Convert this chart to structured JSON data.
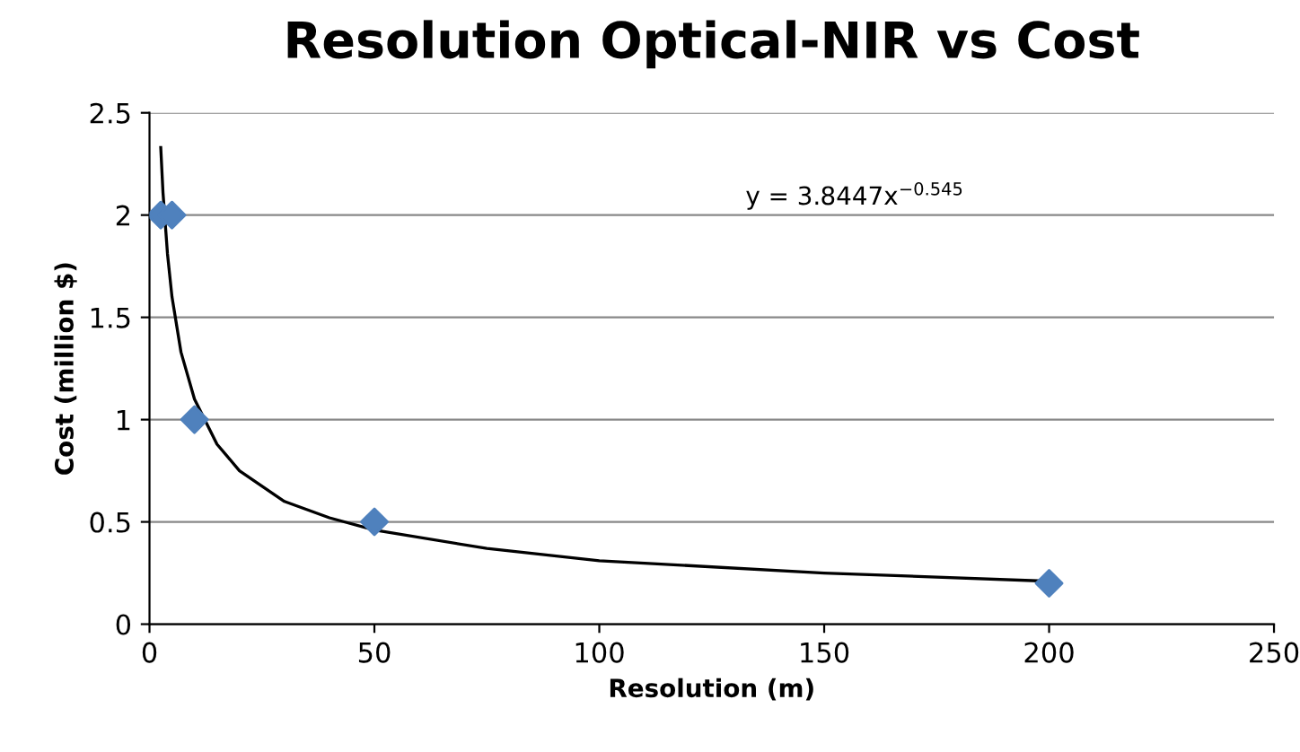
{
  "chart_data": {
    "type": "scatter",
    "title": "Resolution Optical-NIR vs Cost",
    "xlabel": "Resolution (m)",
    "ylabel": "Cost (million $)",
    "xlim": [
      0,
      250
    ],
    "xticks": [
      0,
      50,
      100,
      150,
      200,
      250
    ],
    "ylim": [
      0,
      2.5
    ],
    "yticks": [
      0,
      0.5,
      1,
      1.5,
      2,
      2.5
    ],
    "grid": "y",
    "marker": "diamond",
    "annotations": [
      "y = 3.8447x$^{−0.545}$"
    ],
    "series": [
      {
        "color": "#4f81bd",
        "x": [
          2.5,
          5,
          10,
          50,
          200
        ],
        "values": [
          2,
          2,
          1,
          0.5,
          0.2
        ]
      },
      {
        "type": "line",
        "color": "#000000",
        "marker": "none",
        "x": [
          2.5,
          3,
          4,
          5,
          7,
          10,
          15,
          20,
          30,
          40,
          50,
          75,
          100,
          150,
          200
        ],
        "values": [
          2.33,
          2.11,
          1.81,
          1.6,
          1.33,
          1.1,
          0.88,
          0.75,
          0.6,
          0.52,
          0.46,
          0.37,
          0.31,
          0.25,
          0.21
        ]
      }
    ]
  }
}
